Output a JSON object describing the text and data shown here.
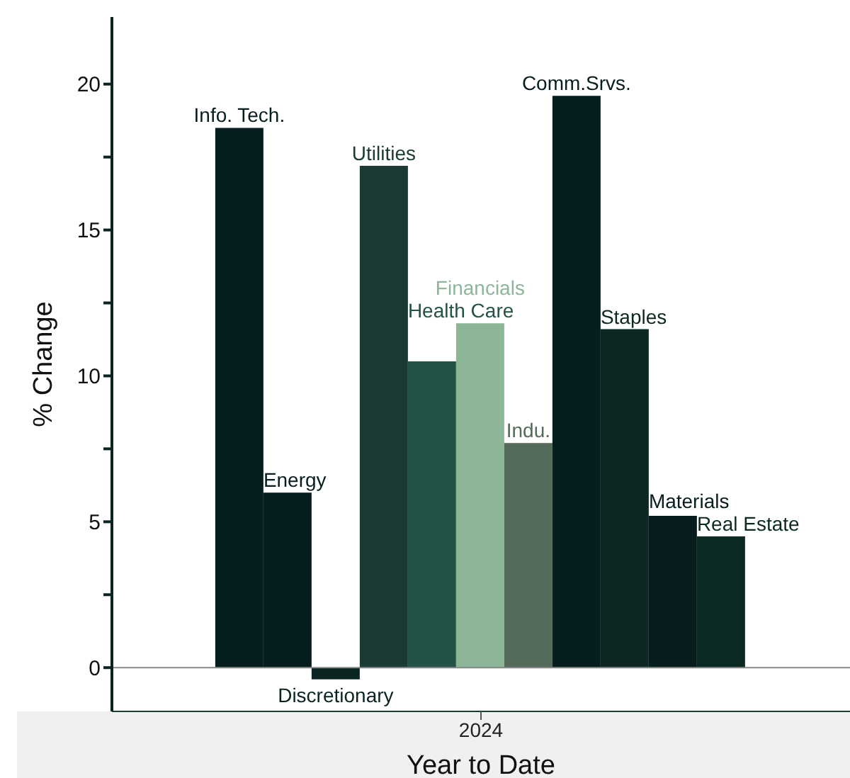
{
  "chart_data": {
    "type": "bar",
    "xlabel": "Year to Date",
    "ylabel": "% Change",
    "categories": [
      "2024"
    ],
    "series": [
      {
        "name": "Info. Tech.",
        "color": "#071e1e",
        "values": [
          18.5
        ]
      },
      {
        "name": "Energy",
        "color": "#071e1e",
        "values": [
          6.0
        ]
      },
      {
        "name": "Discretionary",
        "color": "#0a2421",
        "values": [
          -0.4
        ]
      },
      {
        "name": "Utilities",
        "color": "#1a3a33",
        "values": [
          17.2
        ]
      },
      {
        "name": "Health Care",
        "color": "#235247",
        "values": [
          10.5
        ]
      },
      {
        "name": "Financials",
        "color": "#8db699",
        "values": [
          11.8
        ]
      },
      {
        "name": "Indu.",
        "color": "#546b5b",
        "values": [
          7.7
        ]
      },
      {
        "name": "Comm.Srvs.",
        "color": "#071e1e",
        "values": [
          19.6
        ]
      },
      {
        "name": "Staples",
        "color": "#0d2823",
        "values": [
          11.6
        ]
      },
      {
        "name": "Materials",
        "color": "#071c1c",
        "values": [
          5.2
        ]
      },
      {
        "name": "Real Estate",
        "color": "#0c2a24",
        "values": [
          4.5
        ]
      }
    ],
    "ylim": [
      -1.5,
      22.3
    ],
    "yticks": [
      0,
      {
        "value": 2.5,
        "label": null
      },
      5,
      {
        "value": 7.5,
        "label": null
      },
      10,
      {
        "value": 12.5,
        "label": null
      },
      15,
      {
        "value": 17.5,
        "label": null
      },
      20
    ],
    "ref_lines": [
      {
        "axis": "y",
        "value": 0,
        "color": "#888888"
      }
    ]
  }
}
